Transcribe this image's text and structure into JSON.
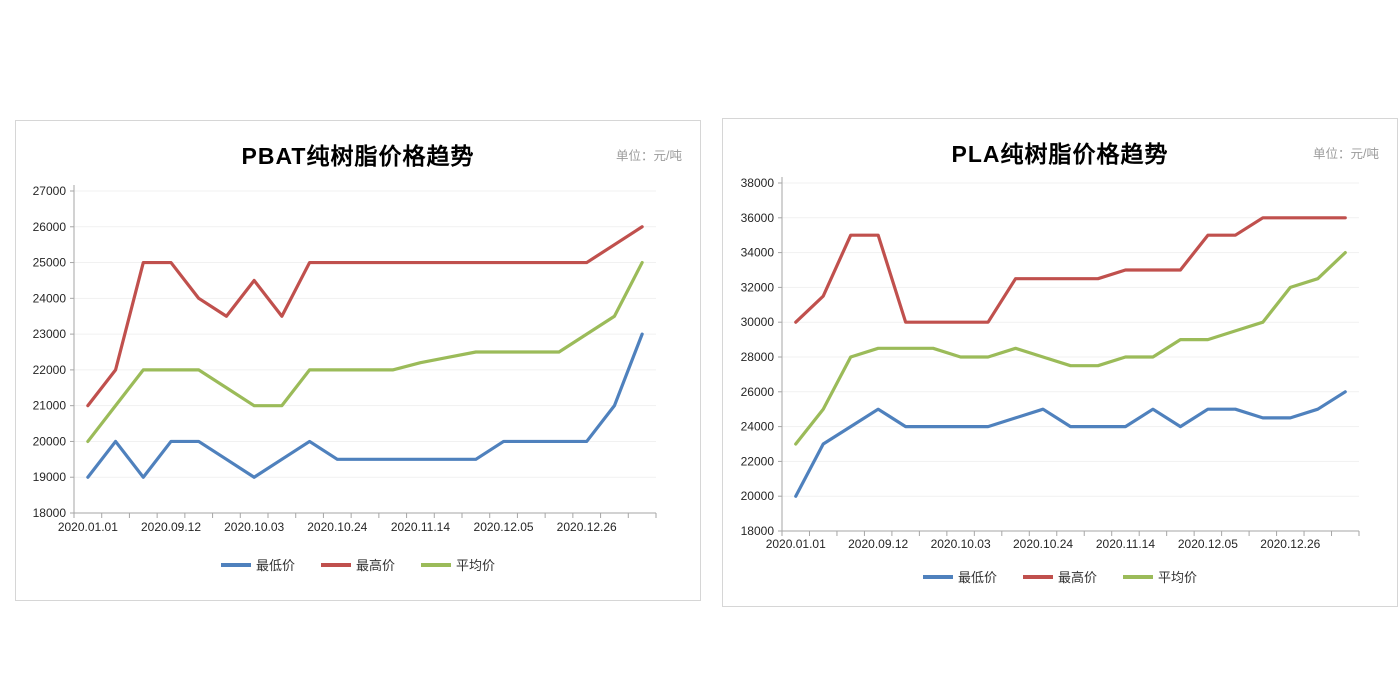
{
  "page": {
    "background": "#ffffff"
  },
  "chart_data": [
    {
      "id": "pbat",
      "type": "line",
      "title": "PBAT纯树脂价格趋势",
      "unit_label": "单位：元/吨",
      "grid": true,
      "legend_position": "bottom",
      "n_points": 21,
      "label_interval": 3,
      "x_tick_labels": [
        "2020.01.01",
        "2020.09.12",
        "2020.10.03",
        "2020.10.24",
        "2020.11.14",
        "2020.12.05",
        "2020.12.26"
      ],
      "y_axis": {
        "min": 18000,
        "max": 27000,
        "step": 1000
      },
      "axis_color": "#a6a6a6",
      "gridline_color": "#f1f1f1",
      "series": [
        {
          "name": "最低价",
          "color": "#4F81BD",
          "values": [
            19000,
            20000,
            19000,
            20000,
            20000,
            19500,
            19000,
            19500,
            20000,
            19500,
            19500,
            19500,
            19500,
            19500,
            19500,
            20000,
            20000,
            20000,
            20000,
            21000,
            23000
          ]
        },
        {
          "name": "最高价",
          "color": "#C0504D",
          "values": [
            21000,
            22000,
            25000,
            25000,
            24000,
            23500,
            24500,
            23500,
            25000,
            25000,
            25000,
            25000,
            25000,
            25000,
            25000,
            25000,
            25000,
            25000,
            25000,
            25500,
            26000
          ]
        },
        {
          "name": "平均价",
          "color": "#9BBB59",
          "values": [
            20000,
            21000,
            22000,
            22000,
            22000,
            21500,
            21000,
            21000,
            22000,
            22000,
            22000,
            22000,
            22200,
            22350,
            22500,
            22500,
            22500,
            22500,
            23000,
            23500,
            25000
          ]
        }
      ]
    },
    {
      "id": "pla",
      "type": "line",
      "title": "PLA纯树脂价格趋势",
      "unit_label": "单位：元/吨",
      "grid": true,
      "legend_position": "bottom",
      "n_points": 21,
      "label_interval": 3,
      "x_tick_labels": [
        "2020.01.01",
        "2020.09.12",
        "2020.10.03",
        "2020.10.24",
        "2020.11.14",
        "2020.12.05",
        "2020.12.26"
      ],
      "y_axis": {
        "min": 18000,
        "max": 38000,
        "step": 2000
      },
      "axis_color": "#a6a6a6",
      "gridline_color": "#f1f1f1",
      "series": [
        {
          "name": "最低价",
          "color": "#4F81BD",
          "values": [
            20000,
            23000,
            24000,
            25000,
            24000,
            24000,
            24000,
            24000,
            24500,
            25000,
            24000,
            24000,
            24000,
            25000,
            24000,
            25000,
            25000,
            24500,
            24500,
            25000,
            26000
          ]
        },
        {
          "name": "最高价",
          "color": "#C0504D",
          "values": [
            30000,
            31500,
            35000,
            35000,
            30000,
            30000,
            30000,
            30000,
            32500,
            32500,
            32500,
            32500,
            33000,
            33000,
            33000,
            35000,
            35000,
            36000,
            36000,
            36000,
            36000
          ]
        },
        {
          "name": "平均价",
          "color": "#9BBB59",
          "values": [
            23000,
            25000,
            28000,
            28500,
            28500,
            28500,
            28000,
            28000,
            28500,
            28000,
            27500,
            27500,
            28000,
            28000,
            29000,
            29000,
            29500,
            30000,
            32000,
            32500,
            34000
          ]
        }
      ]
    }
  ]
}
